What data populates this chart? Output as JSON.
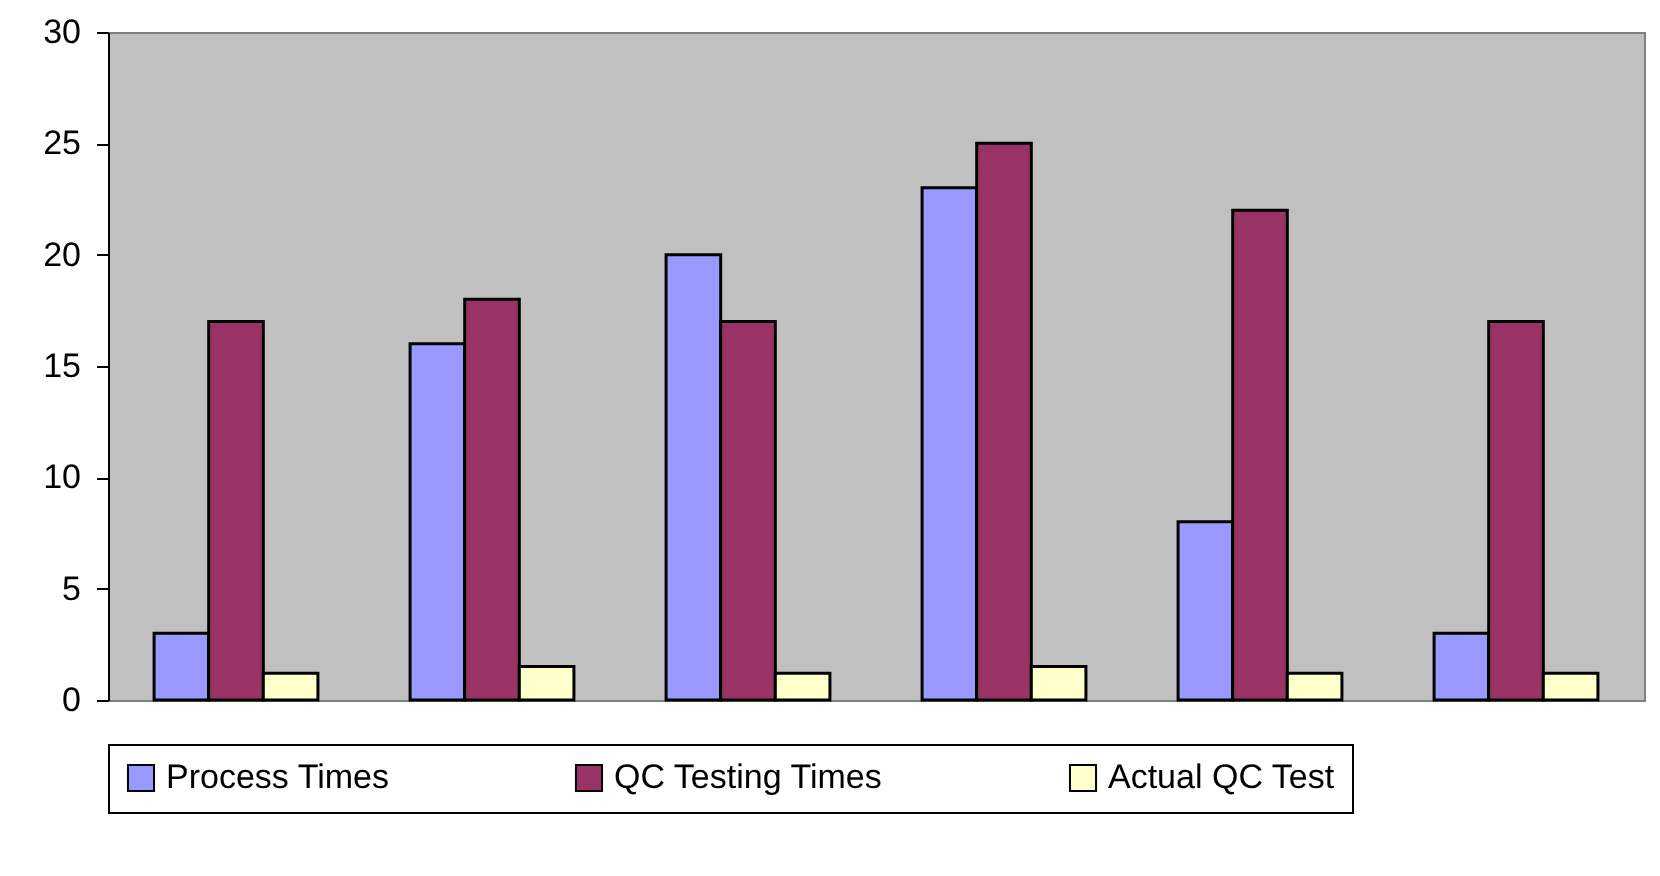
{
  "chart_data": {
    "type": "bar",
    "categories": [
      null,
      null,
      null,
      null,
      null,
      null
    ],
    "series": [
      {
        "name": "Process Times",
        "color": "#9999ff",
        "values": [
          3,
          16,
          20,
          23,
          8,
          3
        ]
      },
      {
        "name": "QC Testing Times",
        "color": "#993366",
        "values": [
          17,
          18,
          17,
          25,
          22,
          17
        ]
      },
      {
        "name": "Actual QC Test",
        "color": "#ffffcc",
        "values": [
          1.2,
          1.5,
          1.2,
          1.5,
          1.2,
          1.2
        ]
      }
    ],
    "ylim": [
      0,
      30
    ],
    "yticks": [
      0,
      5,
      10,
      15,
      20,
      25,
      30
    ],
    "grid": false,
    "legend": "bottom"
  }
}
